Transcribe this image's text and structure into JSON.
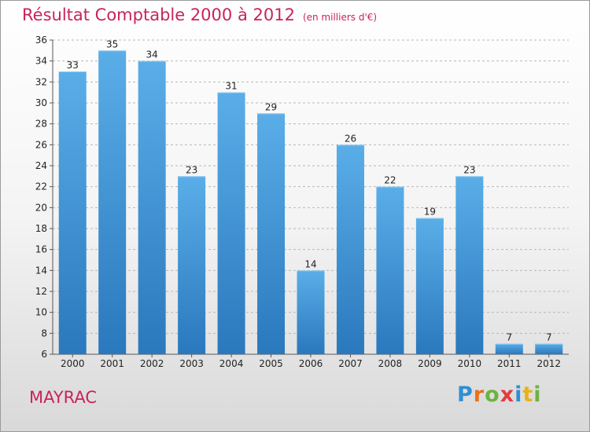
{
  "header": {
    "title": "Résultat Comptable 2000 à 2012",
    "unit": "(en milliers d'€)"
  },
  "footer": {
    "city": "MAYRAC",
    "logo_letters": [
      {
        "ch": "P",
        "color": "#2f8fd4"
      },
      {
        "ch": "r",
        "color": "#e8731a"
      },
      {
        "ch": "o",
        "color": "#6cb33f"
      },
      {
        "ch": "x",
        "color": "#e23b3b"
      },
      {
        "ch": "i",
        "color": "#2f8fd4"
      },
      {
        "ch": "t",
        "color": "#e8b21a"
      },
      {
        "ch": "i",
        "color": "#6cb33f"
      }
    ]
  },
  "chart_data": {
    "type": "bar",
    "categories": [
      "2000",
      "2001",
      "2002",
      "2003",
      "2004",
      "2005",
      "2006",
      "2007",
      "2008",
      "2009",
      "2010",
      "2011",
      "2012"
    ],
    "values": [
      33,
      35,
      34,
      23,
      31,
      29,
      14,
      26,
      22,
      19,
      23,
      7,
      7
    ],
    "ylim": [
      6,
      36
    ],
    "yticks": [
      6,
      8,
      10,
      12,
      14,
      16,
      18,
      20,
      22,
      24,
      26,
      28,
      30,
      32,
      34,
      36
    ],
    "grid": true,
    "colors": {
      "bar_top": "#5aaee8",
      "bar_bottom": "#2a78bd",
      "grid": "#b8b8b8",
      "title": "#c8245a"
    }
  }
}
